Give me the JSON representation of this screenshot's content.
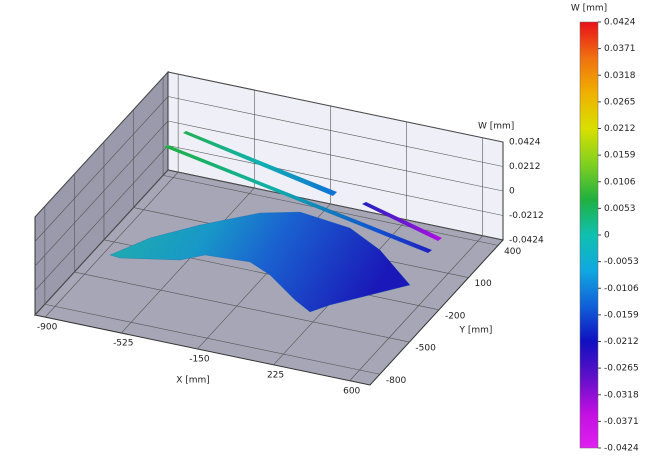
{
  "chart_data": {
    "type": "surface3d",
    "x_label": "X [mm]",
    "y_label": "Y [mm]",
    "z_label": "W [mm]",
    "colorbar_title": "W [mm]",
    "xlim": [
      -950,
      700
    ],
    "xticks": [
      -900,
      -525,
      -150,
      225,
      600
    ],
    "ylim": [
      -900,
      450
    ],
    "yticks": [
      -800,
      -500,
      -200,
      100,
      400
    ],
    "zlim": [
      -0.0424,
      0.0424
    ],
    "zticks": [
      0.0424,
      0.0212,
      0,
      -0.0212,
      -0.0424
    ],
    "colorbar_ticks": [
      0.0424,
      0.0371,
      0.0318,
      0.0265,
      0.0212,
      0.0159,
      0.0106,
      0.0053,
      0,
      -0.0053,
      -0.0106,
      -0.0159,
      -0.0212,
      -0.0265,
      -0.0318,
      -0.0371,
      -0.0424
    ],
    "colormap": [
      "#e8101a",
      "#f07010",
      "#f0b000",
      "#d8e000",
      "#80d020",
      "#20b040",
      "#10c0b0",
      "#10a8e0",
      "#1060d8",
      "#1010c0",
      "#6010c8",
      "#c010e0",
      "#e020f0"
    ],
    "grid": true
  }
}
